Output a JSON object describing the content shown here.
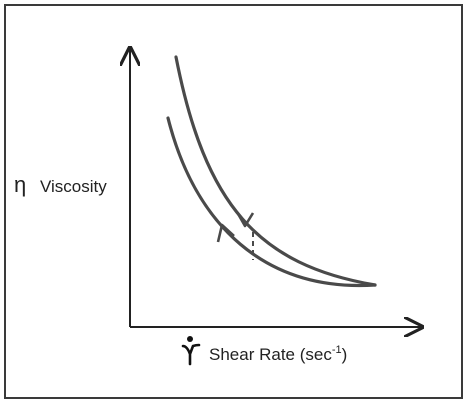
{
  "diagram": {
    "y_axis": {
      "symbol": "η",
      "label": "Viscosity"
    },
    "x_axis": {
      "label": "Shear Rate (sec",
      "exponent": "-1",
      "close": ")"
    },
    "colors": {
      "curve": "#4a4a4a",
      "axis": "#222222",
      "border": "#3a3a3a"
    }
  }
}
